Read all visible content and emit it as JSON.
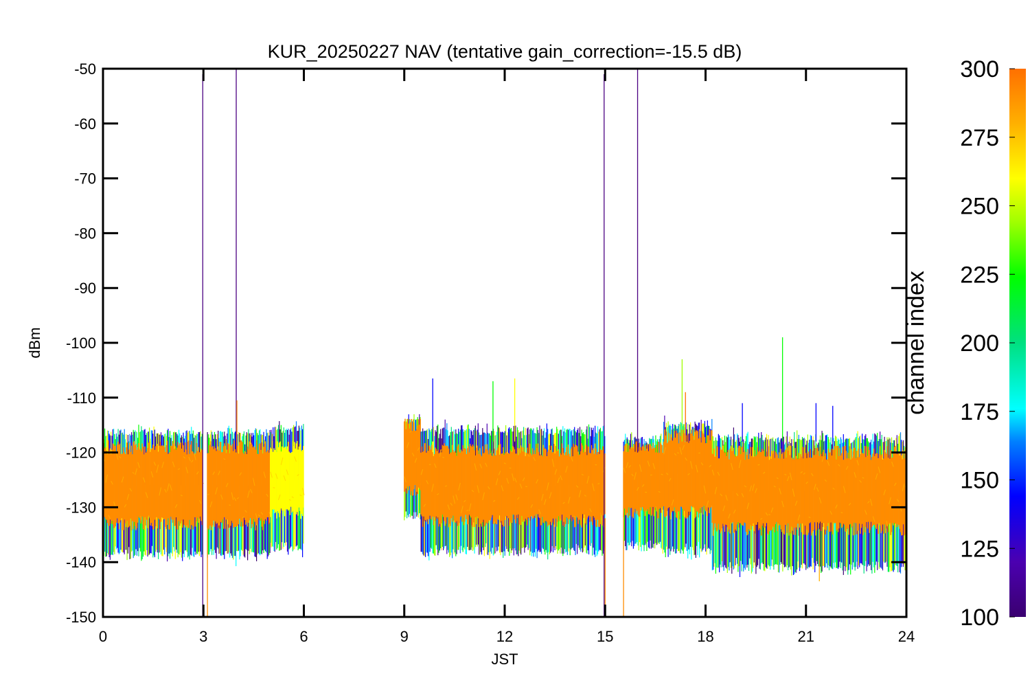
{
  "chart_data": {
    "type": "line",
    "title": "KUR_20250227 NAV (tentative gain_correction=-15.5 dB)",
    "xlabel": "JST",
    "ylabel": "dBm",
    "xlim": [
      0,
      24
    ],
    "ylim": [
      -150,
      -50
    ],
    "x_ticks": [
      0,
      3,
      6,
      9,
      12,
      15,
      18,
      21,
      24
    ],
    "x_tick_labels": [
      "0",
      "3",
      "6",
      "9",
      "12",
      "15",
      "18",
      "21",
      "24"
    ],
    "y_ticks": [
      -50,
      -60,
      -70,
      -80,
      -90,
      -100,
      -110,
      -120,
      -130,
      -140,
      -150
    ],
    "y_tick_labels": [
      "-50",
      "-60",
      "-70",
      "-80",
      "-90",
      "-100",
      "-110",
      "-120",
      "-130",
      "-140",
      "-150"
    ],
    "grid": false,
    "colorbar": {
      "label": "channel index",
      "range": [
        100,
        300
      ],
      "ticks": [
        100,
        125,
        150,
        175,
        200,
        225,
        250,
        275,
        300
      ],
      "tick_labels": [
        "100",
        "125",
        "150",
        "175",
        "200",
        "225",
        "250",
        "275",
        "300"
      ],
      "colormap": [
        "#3a0070",
        "#4b00b0",
        "#0000ff",
        "#0080ff",
        "#00ffff",
        "#00e080",
        "#00ff00",
        "#a0ff00",
        "#ffff00",
        "#ffb000",
        "#ff7000"
      ]
    },
    "segments": [
      {
        "x": [
          0.0,
          2.98
        ],
        "band_center": -126,
        "band_halfwidth": 7.5,
        "envelope": [
          -116.5,
          -138.5
        ],
        "dominant_color": "#ff8c00"
      },
      {
        "x": [
          3.12,
          5.0
        ],
        "band_center": -126,
        "band_halfwidth": 7.5,
        "envelope": [
          -116.5,
          -138.5
        ],
        "dominant_color": "#ff8c00"
      },
      {
        "x": [
          5.0,
          6.0
        ],
        "band_center": -125,
        "band_halfwidth": 6.5,
        "envelope": [
          -115.5,
          -137.5
        ],
        "dominant_color": "#ffff00"
      },
      {
        "x": [
          9.0,
          9.5
        ],
        "band_center": -121,
        "band_halfwidth": 6.5,
        "envelope": [
          -114.0,
          -131.5
        ],
        "dominant_color": "#ff8c00"
      },
      {
        "x": [
          9.5,
          15.0
        ],
        "band_center": -126,
        "band_halfwidth": 7.0,
        "envelope": [
          -116.0,
          -138.0
        ],
        "dominant_color": "#ff8c00"
      },
      {
        "x": [
          15.55,
          16.75
        ],
        "band_center": -125,
        "band_halfwidth": 6.5,
        "envelope": [
          -117.5,
          -137.0
        ],
        "dominant_color": "#ff8c00"
      },
      {
        "x": [
          16.75,
          18.2
        ],
        "band_center": -124,
        "band_halfwidth": 7.5,
        "envelope": [
          -115.0,
          -138.0
        ],
        "dominant_color": "#ff8c00"
      },
      {
        "x": [
          18.2,
          24.0
        ],
        "band_center": -127,
        "band_halfwidth": 7.5,
        "envelope": [
          -117.5,
          -141.0
        ],
        "dominant_color": "#ff8c00"
      }
    ],
    "spikes": [
      {
        "x": 2.98,
        "y1": -150,
        "y2": -51,
        "color": "#4b0082"
      },
      {
        "x": 3.12,
        "y1": -150,
        "y2": -133,
        "color": "#ff8c00"
      },
      {
        "x": 3.98,
        "y1": -120,
        "y2": -50,
        "color": "#4b0082"
      },
      {
        "x": 4.0,
        "y1": -120,
        "y2": -110.5,
        "color": "#ff8c00"
      },
      {
        "x": 9.85,
        "y1": -118,
        "y2": -106.5,
        "color": "#0000ff"
      },
      {
        "x": 11.65,
        "y1": -118,
        "y2": -107,
        "color": "#00ff00"
      },
      {
        "x": 12.3,
        "y1": -118,
        "y2": -106.5,
        "color": "#ffff00"
      },
      {
        "x": 14.97,
        "y1": -150,
        "y2": -51,
        "color": "#4b0082"
      },
      {
        "x": 15.0,
        "y1": -150,
        "y2": -132,
        "color": "#ff8c00"
      },
      {
        "x": 15.55,
        "y1": -150,
        "y2": -131,
        "color": "#ff8c00"
      },
      {
        "x": 15.97,
        "y1": -120,
        "y2": -50,
        "color": "#4b0082"
      },
      {
        "x": 17.3,
        "y1": -118,
        "y2": -103,
        "color": "#a0ff00"
      },
      {
        "x": 17.4,
        "y1": -118,
        "y2": -109,
        "color": "#ff7000"
      },
      {
        "x": 19.1,
        "y1": -118,
        "y2": -111,
        "color": "#0000ff"
      },
      {
        "x": 20.3,
        "y1": -118,
        "y2": -99,
        "color": "#00ff00"
      },
      {
        "x": 21.3,
        "y1": -118,
        "y2": -111,
        "color": "#0000ff"
      },
      {
        "x": 21.4,
        "y1": -134,
        "y2": -143.5,
        "color": "#ffb000"
      },
      {
        "x": 21.8,
        "y1": -118,
        "y2": -111.5,
        "color": "#0000ff"
      }
    ]
  }
}
